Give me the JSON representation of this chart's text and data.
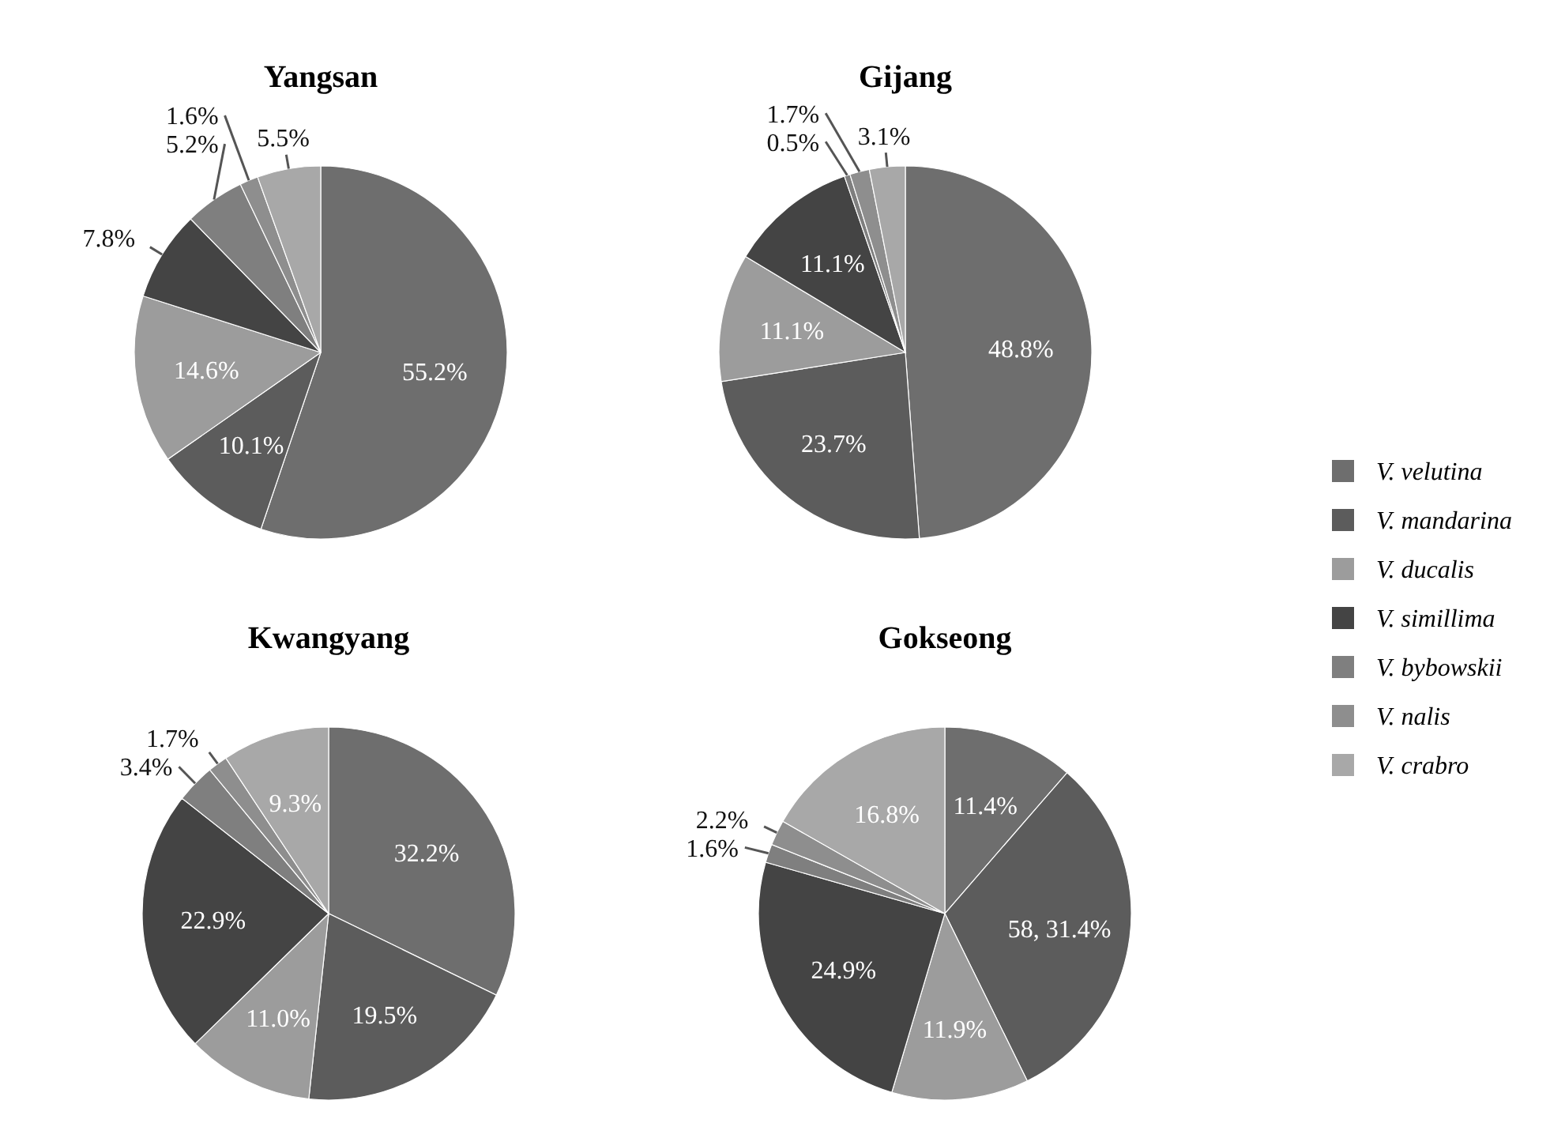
{
  "chart_data": [
    {
      "type": "pie",
      "title": "Yangsan",
      "categories": [
        null,
        null,
        null,
        null,
        null,
        null,
        null
      ],
      "values": [
        55.2,
        10.1,
        14.6,
        7.8,
        5.2,
        1.6,
        5.5
      ],
      "value_labels": [
        "55.2%",
        "10.1%",
        "14.6%",
        "7.8%",
        "5.2%",
        "1.6%",
        "5.5%"
      ],
      "colors": [
        "#6e6e6e",
        "#5c5c5c",
        "#9c9c9c",
        "#444444",
        "#7f7f7f",
        "#8e8e8e",
        "#a8a8a8"
      ],
      "legend": false
    },
    {
      "type": "pie",
      "title": "Gijang",
      "categories": [
        "V. velutina",
        "V. mandarina",
        "V. ducalis",
        "V. simillima",
        "V. bybowskii",
        "V. nalis",
        "V. crabro"
      ],
      "values": [
        48.8,
        23.7,
        11.1,
        11.1,
        0.5,
        1.7,
        3.1
      ],
      "value_labels": [
        "48.8%",
        "23.7%",
        "11.1%",
        "11.1%",
        "0.5%",
        "1.7%",
        "3.1%"
      ],
      "colors": [
        "#6e6e6e",
        "#5c5c5c",
        "#9c9c9c",
        "#444444",
        "#7f7f7f",
        "#8e8e8e",
        "#a8a8a8"
      ],
      "legend": "right"
    },
    {
      "type": "pie",
      "title": "Kwangyang",
      "categories": [
        null,
        null,
        null,
        null,
        null,
        null,
        null
      ],
      "values": [
        32.2,
        19.5,
        11.0,
        22.9,
        3.4,
        1.7,
        9.3
      ],
      "value_labels": [
        "32.2%",
        "19.5%",
        "11.0%",
        "22.9%",
        "3.4%",
        "1.7%",
        "9.3%"
      ],
      "colors": [
        "#6e6e6e",
        "#5c5c5c",
        "#9c9c9c",
        "#444444",
        "#7f7f7f",
        "#8e8e8e",
        "#a8a8a8"
      ],
      "legend": false
    },
    {
      "type": "pie",
      "title": "Gokseong",
      "categories": [
        null,
        null,
        null,
        null,
        null,
        null,
        null
      ],
      "values": [
        11.4,
        31.4,
        11.9,
        24.9,
        1.6,
        2.2,
        16.8
      ],
      "value_labels": [
        "11.4%",
        "58, 31.4%",
        "11.9%",
        "24.9%",
        "1.6%",
        "2.2%",
        "16.8%"
      ],
      "colors": [
        "#6e6e6e",
        "#5c5c5c",
        "#9c9c9c",
        "#444444",
        "#7f7f7f",
        "#8e8e8e",
        "#a8a8a8"
      ],
      "legend": false
    }
  ]
}
